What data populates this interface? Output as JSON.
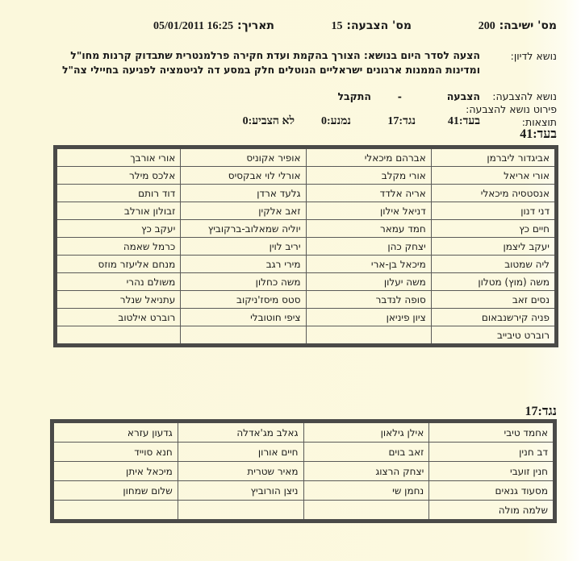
{
  "header": {
    "session_label": "מס' ישיבה:",
    "session_number": "200",
    "vote_label": "מס' הצבעה:",
    "vote_number": "15",
    "date_label": "תאריך:",
    "date_value": "16:25 05/01/2011"
  },
  "details": {
    "subject_label": "נושא לדיון:",
    "subject_text": "הצעה לסדר היום בנושא: הצורך בהקמת ועדת חקירה פרלמנטרית שתבדוק קרנות מחו\"ל ומדינות הממנות ארגונים ישראליים הנוטלים חלק במסע דה לגיטמציה לפגיעה בחיילי צה\"ל",
    "vote_topic_label": "נושא להצבעה:",
    "vote_topic_value": "הצבעה",
    "vote_topic_sep": "-",
    "vote_topic_result": "התקבל",
    "vote_detail_label": "פירוט נושא להצבעה:",
    "results_label": "תוצאות:",
    "results": {
      "for": "בעד:41",
      "against": "נגד:17",
      "abstain": "נמנע:0",
      "not_voted": "לא הצביע:0"
    }
  },
  "for_section": {
    "title": "בעד:41",
    "rows": [
      [
        "אביגדור ליברמן",
        "אברהם מיכאלי",
        "אופיר אקוניס",
        "אורי אורבך"
      ],
      [
        "אורי אריאל",
        "אורי מקלב",
        "אורלי לוי אבקסיס",
        "אלכס מילר"
      ],
      [
        "אנסטסיה מיכאלי",
        "אריה אלדד",
        "גלעד ארדן",
        "דוד רותם"
      ],
      [
        "דני דנון",
        "דניאל אילון",
        "זאב אלקין",
        "זבולון אורלב"
      ],
      [
        "חיים כץ",
        "חמד עמאר",
        "יוליה שמאלוב-ברקוביץ",
        "יעקב כץ"
      ],
      [
        "יעקב ליצמן",
        "יצחק כהן",
        "יריב לוין",
        "כרמל שאמה"
      ],
      [
        "ליה שמטוב",
        "מיכאל בן-ארי",
        "מירי רגב",
        "מנחם אליעזר מוזס"
      ],
      [
        "משה (מוץ) מטלון",
        "משה יעלון",
        "משה כחלון",
        "משולם נהרי"
      ],
      [
        "נסים זאב",
        "סופה לנדבר",
        "סטס מיסז'ניקוב",
        "עתניאל שנלר"
      ],
      [
        "פניה קירשנבאום",
        "ציון פיניאן",
        "ציפי חוטובלי",
        "רוברט אילטוב"
      ],
      [
        "רוברט טיבייב",
        "",
        "",
        ""
      ]
    ]
  },
  "against_section": {
    "title": "נגד:17",
    "rows": [
      [
        "אחמד טיבי",
        "אילן גילאון",
        "גאלב מג'אדלה",
        "גדעון עזרא"
      ],
      [
        "דב חנין",
        "זאב בוים",
        "חיים אורון",
        "חנא סוייד"
      ],
      [
        "חנין זועבי",
        "יצחק הרצוג",
        "מאיר שטרית",
        "מיכאל איתן"
      ],
      [
        "מסעוד גנאים",
        "נחמן שי",
        "ניצן הורוביץ",
        "שלום שמחון"
      ],
      [
        "שלמה מולה",
        "",
        "",
        ""
      ]
    ]
  }
}
